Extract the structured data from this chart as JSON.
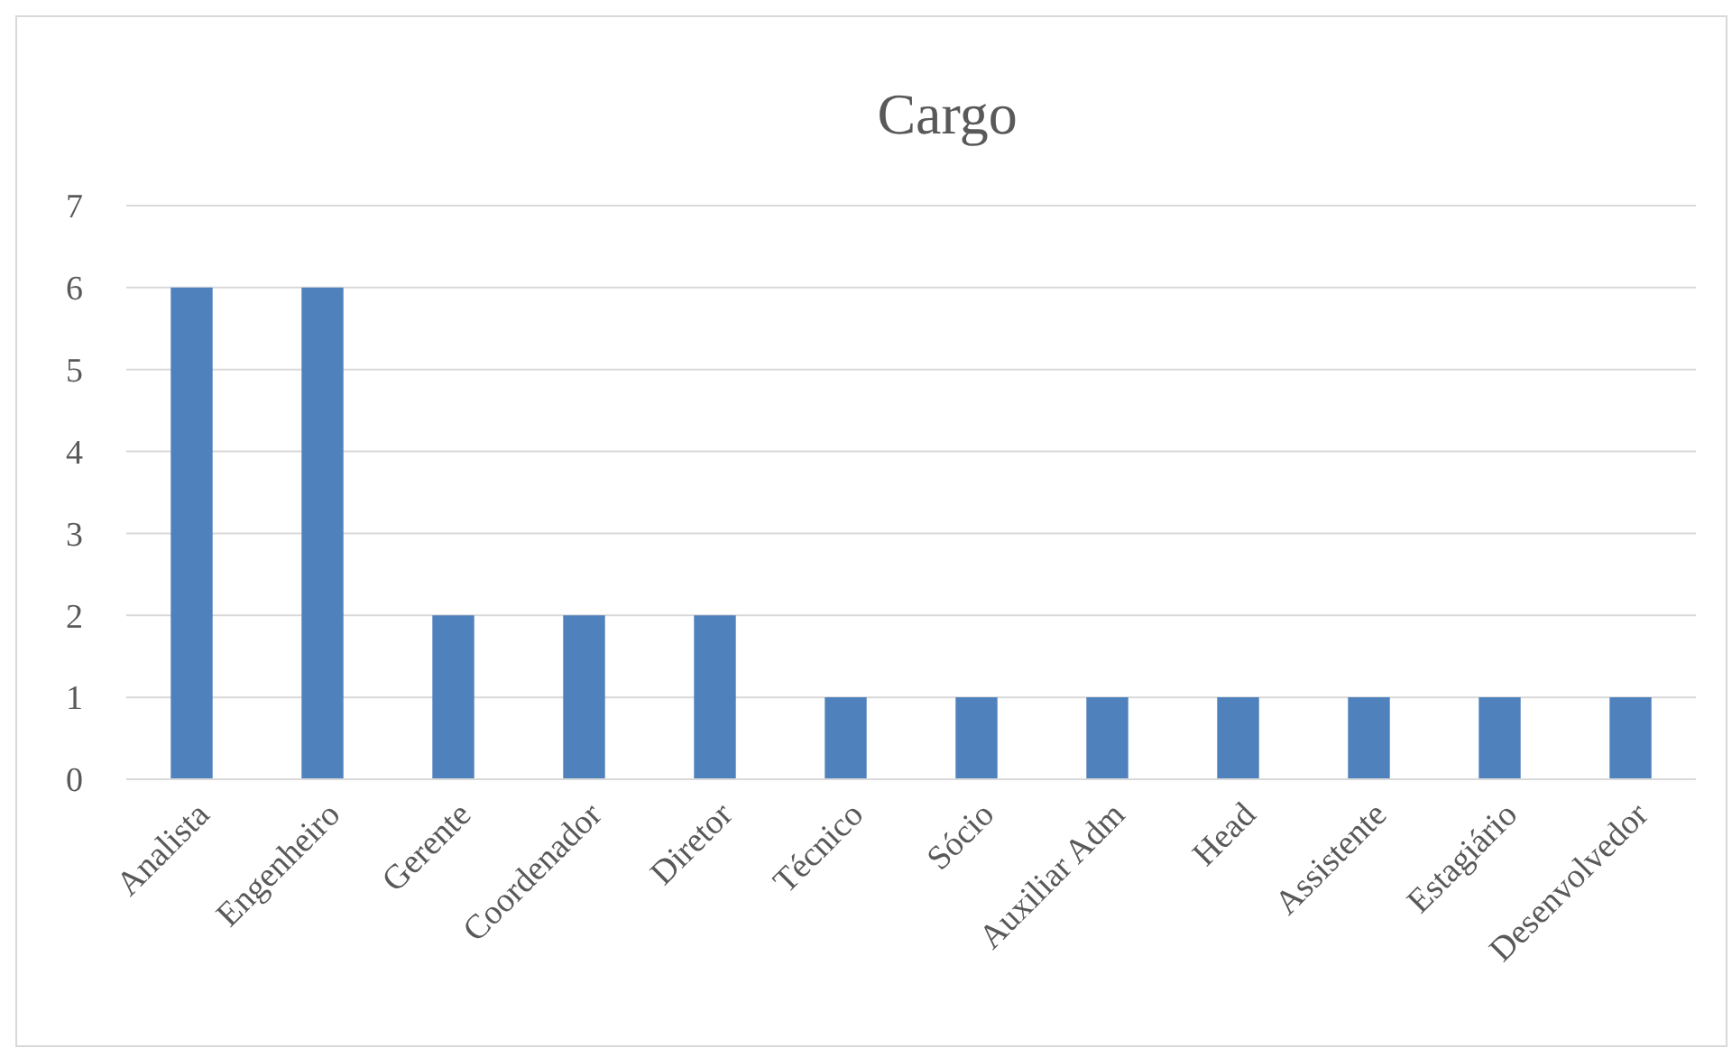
{
  "chart_data": {
    "type": "bar",
    "title": "Cargo",
    "categories": [
      "Analista",
      "Engenheiro",
      "Gerente",
      "Coordenador",
      "Diretor",
      "Técnico",
      "Sócio",
      "Auxiliar Adm",
      "Head",
      "Assistente",
      "Estagiário",
      "Desenvolvedor"
    ],
    "values": [
      6,
      6,
      2,
      2,
      2,
      1,
      1,
      1,
      1,
      1,
      1,
      1
    ],
    "color": "#4f81bd",
    "ylim": [
      0,
      7
    ],
    "yticks": [
      0,
      1,
      2,
      3,
      4,
      5,
      6,
      7
    ],
    "grid": "y"
  }
}
